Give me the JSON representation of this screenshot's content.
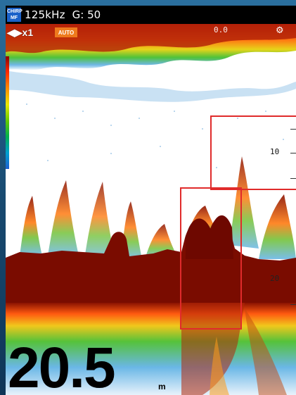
{
  "topbar": {
    "mode_badge_line1": "CHIRP",
    "mode_badge_line2": "MF",
    "frequency": "125kHz",
    "gain": "G: 50"
  },
  "controls": {
    "zoom": "x1",
    "auto_label": "AUTO",
    "range_indicator": "0.0"
  },
  "depth_scale": {
    "ticks": [
      "10",
      "20"
    ]
  },
  "readout": {
    "depth_value": "20.5",
    "unit": "m"
  },
  "colors": {
    "accent_auto": "#ee7a1d",
    "highlight": "#e02b2b",
    "bottom_echo": "#7a0c00"
  }
}
